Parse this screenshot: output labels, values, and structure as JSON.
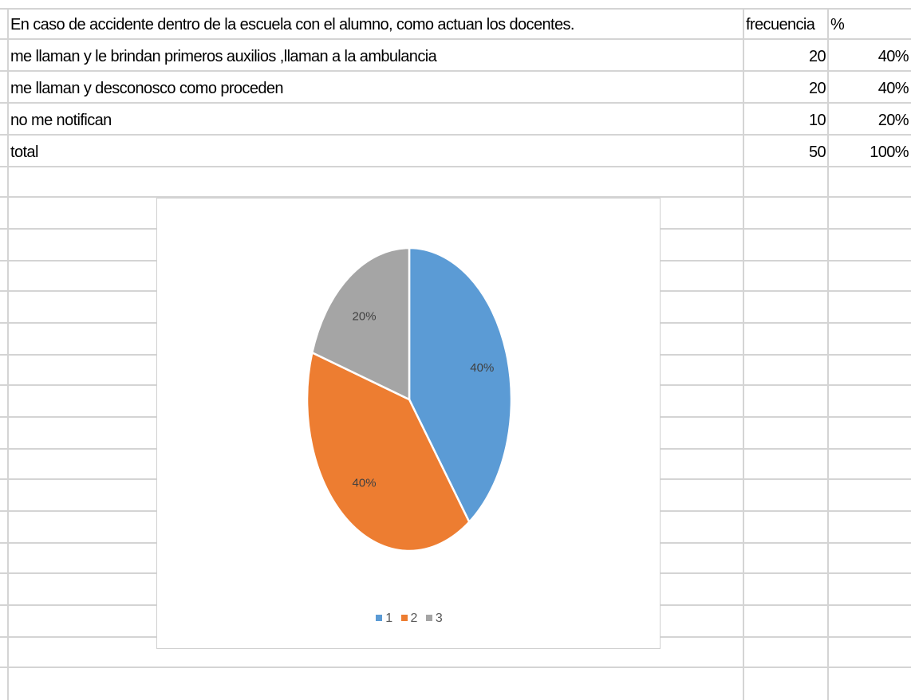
{
  "table": {
    "header": {
      "question": "En caso de accidente dentro de la escuela  con el alumno, como actuan los docentes.",
      "freq_label": "frecuencia",
      "pct_label": "%"
    },
    "rows": [
      {
        "label": "me llaman y le brindan primeros auxilios ,llaman a  la ambulancia",
        "freq": "20",
        "pct": "40%"
      },
      {
        "label": "me llaman y desconosco como proceden",
        "freq": "20",
        "pct": "40%"
      },
      {
        "label": "no me notifican",
        "freq": "10",
        "pct": "20%"
      },
      {
        "label": "total",
        "freq": "50",
        "pct": "100%"
      }
    ]
  },
  "chart_data": {
    "type": "pie",
    "categories": [
      "1",
      "2",
      "3"
    ],
    "values": [
      40,
      40,
      20
    ],
    "data_labels": [
      "40%",
      "40%",
      "20%"
    ],
    "colors": [
      "#5b9bd5",
      "#ed7d31",
      "#a5a5a5"
    ],
    "legend_position": "bottom",
    "title": ""
  }
}
